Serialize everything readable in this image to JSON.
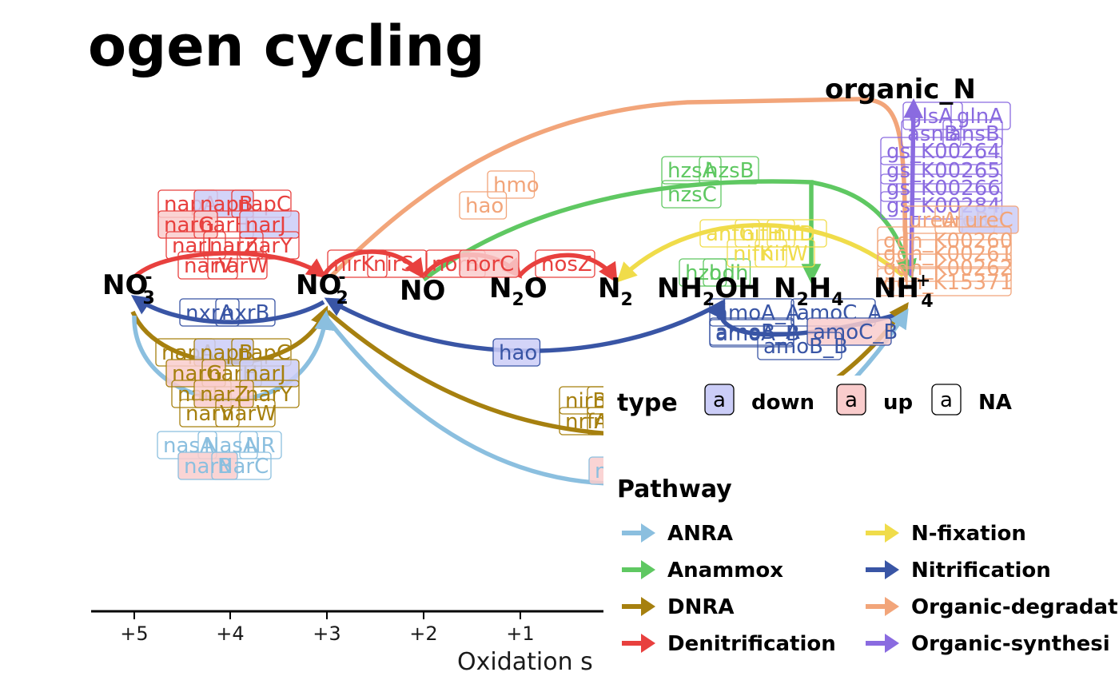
{
  "title": "ogen cycling",
  "axis": {
    "label": "Oxidation s",
    "ticks": [
      "+5",
      "+4",
      "+3",
      "+2",
      "+1"
    ]
  },
  "nodes": {
    "no3": {
      "base": "NO",
      "sub": "3",
      "sup": "-"
    },
    "no2": {
      "base": "NO",
      "sub": "2",
      "sup": "-"
    },
    "no": {
      "base": "NO"
    },
    "n2o": {
      "base": "N",
      "sub": "2",
      "after": "O"
    },
    "n2": {
      "base": "N",
      "sub": "2"
    },
    "nh2oh": {
      "base": "NH",
      "sub": "2",
      "after": "OH"
    },
    "n2h4": {
      "base": "N",
      "sub": "2",
      "after": "H",
      "sub2": "4"
    },
    "nh4": {
      "base": "NH",
      "sub": "4",
      "sup": "+"
    },
    "organic_n": {
      "base": "organic_N"
    }
  },
  "colors": {
    "ANRA": "#8bbfdf",
    "Anammox": "#5fc862",
    "DNRA": "#a6800f",
    "Denitrification": "#e8403e",
    "N-fixation": "#f0dc4a",
    "Nitrification": "#3955a5",
    "Organic-degradation": "#f2a57a",
    "Organic-synthesis": "#8a6be0",
    "fill_down": "#cbcdf7",
    "fill_up": "#f9cccc"
  },
  "type_legend": {
    "title": "type",
    "key_glyph": "a",
    "items": [
      "down",
      "up",
      "NA"
    ]
  },
  "pathway_legend": {
    "title": "Pathway",
    "items": [
      "ANRA",
      "Anammox",
      "DNRA",
      "Denitrification",
      "N-fixation",
      "Nitrification",
      "Organic-degradat",
      "Organic-synthesi"
    ]
  },
  "gene_labels": [
    {
      "text": "napA",
      "pathway": "Denitrification",
      "type": "NA"
    },
    {
      "text": "napB",
      "pathway": "Denitrification",
      "type": "down"
    },
    {
      "text": "napC",
      "pathway": "Denitrification",
      "type": "NA"
    },
    {
      "text": "narG",
      "pathway": "Denitrification",
      "type": "up"
    },
    {
      "text": "narH",
      "pathway": "Denitrification",
      "type": "NA"
    },
    {
      "text": "narJ",
      "pathway": "Denitrification",
      "type": "down"
    },
    {
      "text": "narI",
      "pathway": "Denitrification",
      "type": "NA"
    },
    {
      "text": "narZ",
      "pathway": "Denitrification",
      "type": "NA"
    },
    {
      "text": "narY",
      "pathway": "Denitrification",
      "type": "NA"
    },
    {
      "text": "narV",
      "pathway": "Denitrification",
      "type": "NA"
    },
    {
      "text": "narW",
      "pathway": "Denitrification",
      "type": "NA"
    },
    {
      "text": "nirK",
      "pathway": "Denitrification",
      "type": "NA"
    },
    {
      "text": "nirS",
      "pathway": "Denitrification",
      "type": "NA"
    },
    {
      "text": "norB",
      "pathway": "Denitrification",
      "type": "NA"
    },
    {
      "text": "norC",
      "pathway": "Denitrification",
      "type": "up"
    },
    {
      "text": "nosZ",
      "pathway": "Denitrification",
      "type": "NA"
    },
    {
      "text": "hmo",
      "pathway": "Organic-degradation",
      "type": "NA"
    },
    {
      "text": "hao",
      "pathway": "Organic-degradation",
      "type": "NA"
    },
    {
      "text": "hzsA",
      "pathway": "Anammox",
      "type": "NA"
    },
    {
      "text": "hzsB",
      "pathway": "Anammox",
      "type": "NA"
    },
    {
      "text": "hzsC",
      "pathway": "Anammox",
      "type": "NA"
    },
    {
      "text": "hzo",
      "pathway": "Anammox",
      "type": "NA"
    },
    {
      "text": "hdh",
      "pathway": "Anammox",
      "type": "NA"
    },
    {
      "text": "anfG",
      "pathway": "N-fixation",
      "type": "NA"
    },
    {
      "text": "nifH",
      "pathway": "N-fixation",
      "type": "NA"
    },
    {
      "text": "nifD",
      "pathway": "N-fixation",
      "type": "NA"
    },
    {
      "text": "nifK",
      "pathway": "N-fixation",
      "type": "NA"
    },
    {
      "text": "nifW",
      "pathway": "N-fixation",
      "type": "NA"
    },
    {
      "text": "glsA",
      "pathway": "Organic-synthesis",
      "type": "NA"
    },
    {
      "text": "glnA",
      "pathway": "Organic-synthesis",
      "type": "NA"
    },
    {
      "text": "asnB",
      "pathway": "Organic-synthesis",
      "type": "NA"
    },
    {
      "text": "ansB",
      "pathway": "Organic-synthesis",
      "type": "NA"
    },
    {
      "text": "gs_K00264",
      "pathway": "Organic-synthesis",
      "type": "NA"
    },
    {
      "text": "gs_K00265",
      "pathway": "Organic-synthesis",
      "type": "NA"
    },
    {
      "text": "gs_K00266",
      "pathway": "Organic-synthesis",
      "type": "NA"
    },
    {
      "text": "gs_K00284",
      "pathway": "Organic-synthesis",
      "type": "NA"
    },
    {
      "text": "ureA",
      "pathway": "Organic-degradation",
      "type": "NA"
    },
    {
      "text": "ureB",
      "pathway": "Organic-degradation",
      "type": "NA"
    },
    {
      "text": "ureC",
      "pathway": "Organic-degradation",
      "type": "down"
    },
    {
      "text": "gdh_K00260",
      "pathway": "Organic-degradation",
      "type": "NA"
    },
    {
      "text": "gdh_K00261",
      "pathway": "Organic-degradation",
      "type": "NA"
    },
    {
      "text": "gdh_K00262",
      "pathway": "Organic-degradation",
      "type": "NA"
    },
    {
      "text": "gdh_K15371",
      "pathway": "Organic-degradation",
      "type": "NA"
    },
    {
      "text": "nxrA",
      "pathway": "Nitrification",
      "type": "NA"
    },
    {
      "text": "nxrB",
      "pathway": "Nitrification",
      "type": "NA"
    },
    {
      "text": "hao",
      "pathway": "Nitrification",
      "type": "down"
    },
    {
      "text": "amoA_A",
      "pathway": "Nitrification",
      "type": "NA"
    },
    {
      "text": "amoC_A",
      "pathway": "Nitrification",
      "type": "NA"
    },
    {
      "text": "amoB_A",
      "pathway": "Nitrification",
      "type": "NA"
    },
    {
      "text": "amoA_B",
      "pathway": "Nitrification",
      "type": "NA"
    },
    {
      "text": "amoC_B",
      "pathway": "Nitrification",
      "type": "up"
    },
    {
      "text": "amoB_B",
      "pathway": "Nitrification",
      "type": "NA"
    },
    {
      "text": "napA",
      "pathway": "DNRA",
      "type": "NA"
    },
    {
      "text": "napB",
      "pathway": "DNRA",
      "type": "down"
    },
    {
      "text": "napC",
      "pathway": "DNRA",
      "type": "NA"
    },
    {
      "text": "narG",
      "pathway": "DNRA",
      "type": "up"
    },
    {
      "text": "narH",
      "pathway": "DNRA",
      "type": "NA"
    },
    {
      "text": "narJ",
      "pathway": "DNRA",
      "type": "down"
    },
    {
      "text": "narI",
      "pathway": "DNRA",
      "type": "NA"
    },
    {
      "text": "narZ",
      "pathway": "DNRA",
      "type": "up"
    },
    {
      "text": "narY",
      "pathway": "DNRA",
      "type": "NA"
    },
    {
      "text": "narV",
      "pathway": "DNRA",
      "type": "NA"
    },
    {
      "text": "narW",
      "pathway": "DNRA",
      "type": "NA"
    },
    {
      "text": "nirB",
      "pathway": "DNRA",
      "type": "NA"
    },
    {
      "text": "nirD",
      "pathway": "DNRA",
      "type": "NA"
    },
    {
      "text": "nrfA",
      "pathway": "DNRA",
      "type": "NA"
    },
    {
      "text": "nrfH",
      "pathway": "DNRA",
      "type": "NA"
    },
    {
      "text": "nasA",
      "pathway": "ANRA",
      "type": "NA"
    },
    {
      "text": "NasA",
      "pathway": "ANRA",
      "type": "NA"
    },
    {
      "text": "NR",
      "pathway": "ANRA",
      "type": "NA"
    },
    {
      "text": "narB",
      "pathway": "ANRA",
      "type": "up"
    },
    {
      "text": "NarC",
      "pathway": "ANRA",
      "type": "NA"
    },
    {
      "text": "nirA",
      "pathway": "ANRA",
      "type": "up"
    }
  ]
}
